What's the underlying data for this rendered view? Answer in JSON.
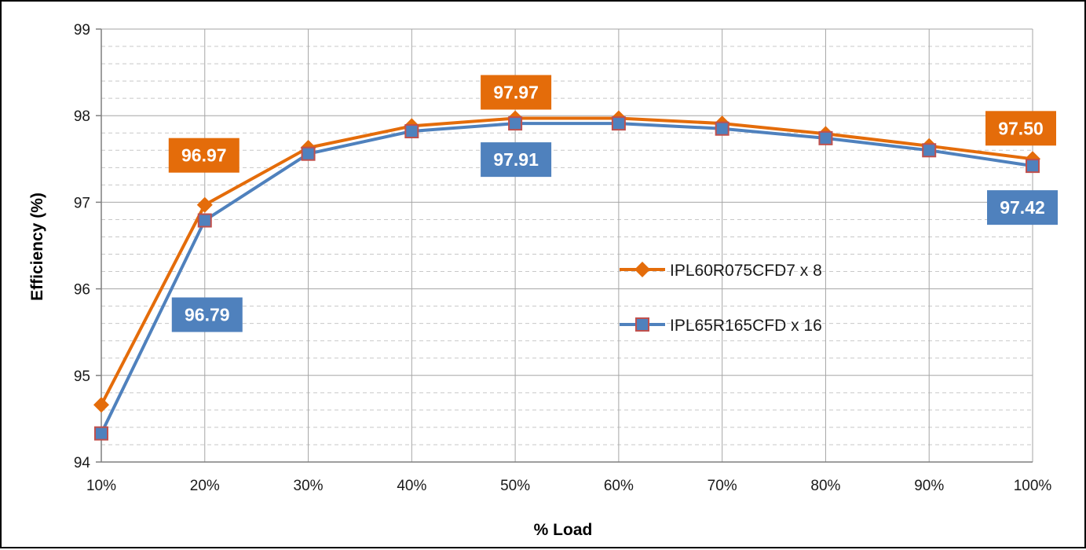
{
  "chart_data": {
    "type": "line",
    "xlabel": "% Load",
    "ylabel": "Efficiency (%)",
    "categories": [
      "10%",
      "20%",
      "30%",
      "40%",
      "50%",
      "60%",
      "70%",
      "80%",
      "90%",
      "100%"
    ],
    "ylim": [
      94,
      99
    ],
    "yticks": [
      "94",
      "95",
      "96",
      "97",
      "98",
      "99"
    ],
    "grid": true,
    "legend_position": "center-right",
    "series": [
      {
        "name": "IPL60R075CFD7 x 8",
        "color": "#E46C0A",
        "marker": "diamond",
        "values": [
          94.66,
          96.97,
          97.63,
          97.88,
          97.97,
          97.97,
          97.91,
          97.79,
          97.65,
          97.5
        ],
        "data_labels": [
          {
            "index": 1,
            "text": "96.97"
          },
          {
            "index": 4,
            "text": "97.97"
          },
          {
            "index": 9,
            "text": "97.50"
          }
        ]
      },
      {
        "name": "IPL65R165CFD x 16",
        "color": "#4F81BD",
        "marker": "square",
        "marker_edge_color": "#C0504D",
        "values": [
          94.33,
          96.79,
          97.56,
          97.82,
          97.91,
          97.91,
          97.85,
          97.74,
          97.6,
          97.42
        ],
        "data_labels": [
          {
            "index": 1,
            "text": "96.79"
          },
          {
            "index": 4,
            "text": "97.91"
          },
          {
            "index": 9,
            "text": "97.42"
          }
        ]
      }
    ]
  }
}
